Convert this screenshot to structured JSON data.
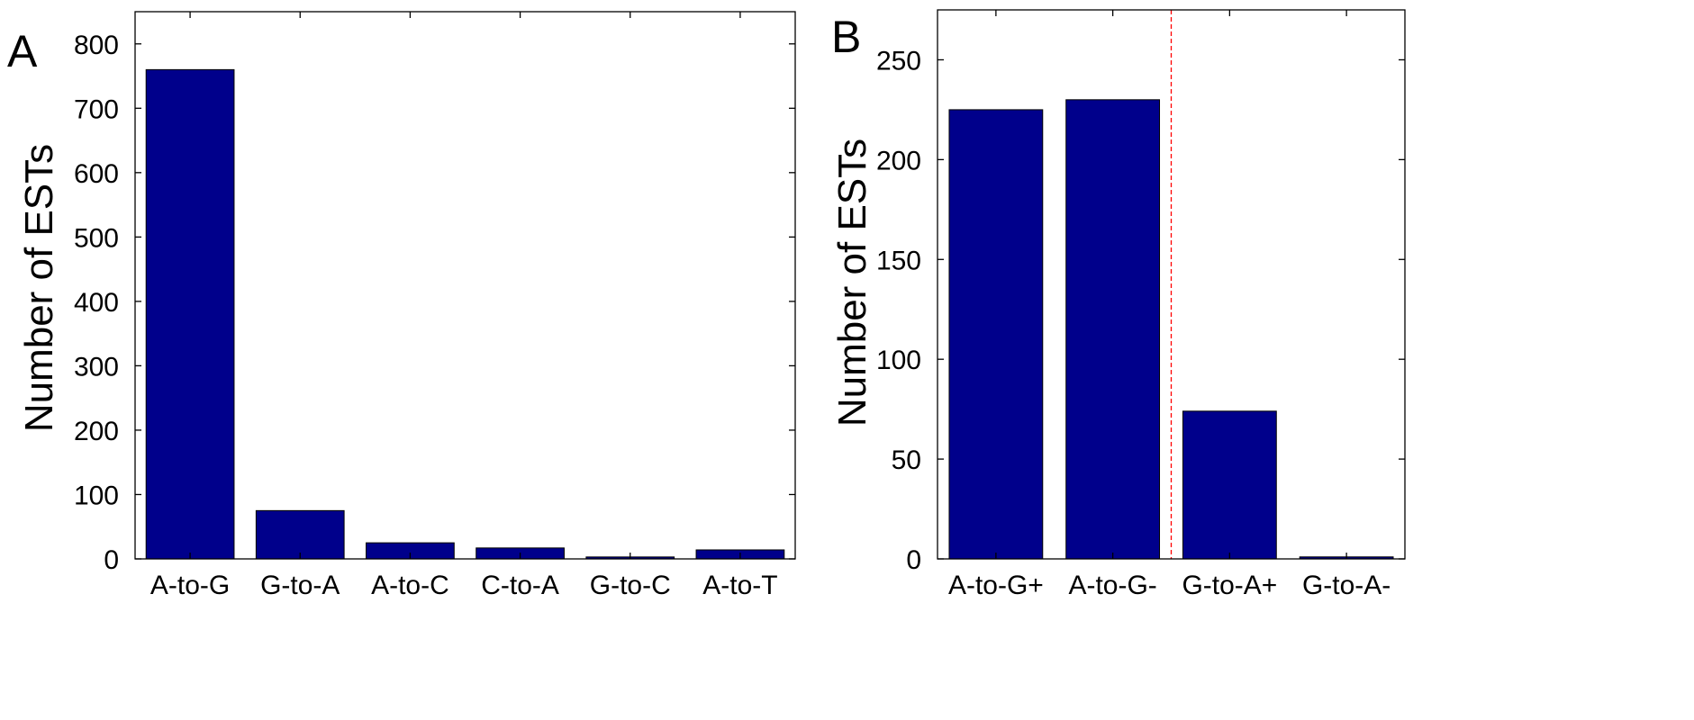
{
  "chart_data": [
    {
      "panel": "A",
      "type": "bar",
      "ylabel": "Number of ESTs",
      "xlabel": "",
      "ylim": [
        0,
        850
      ],
      "yticks": [
        0,
        100,
        200,
        300,
        400,
        500,
        600,
        700,
        800
      ],
      "categories": [
        "A-to-G",
        "G-to-A",
        "A-to-C",
        "C-to-A",
        "G-to-C",
        "A-to-T"
      ],
      "values": [
        760,
        75,
        25,
        17,
        3,
        14
      ],
      "bar_color": "#00008b",
      "grid": false,
      "legend": "none"
    },
    {
      "panel": "B",
      "type": "bar",
      "ylabel": "Number of ESTs",
      "xlabel": "",
      "ylim": [
        0,
        275
      ],
      "yticks": [
        0,
        50,
        100,
        150,
        200,
        250
      ],
      "categories": [
        "A-to-G+",
        "A-to-G-",
        "G-to-A+",
        "G-to-A-"
      ],
      "values": [
        225,
        230,
        74,
        1
      ],
      "bar_color": "#00008b",
      "divider_after_category": 2,
      "divider_color": "#ff0000",
      "grid": false,
      "legend": "none"
    }
  ]
}
